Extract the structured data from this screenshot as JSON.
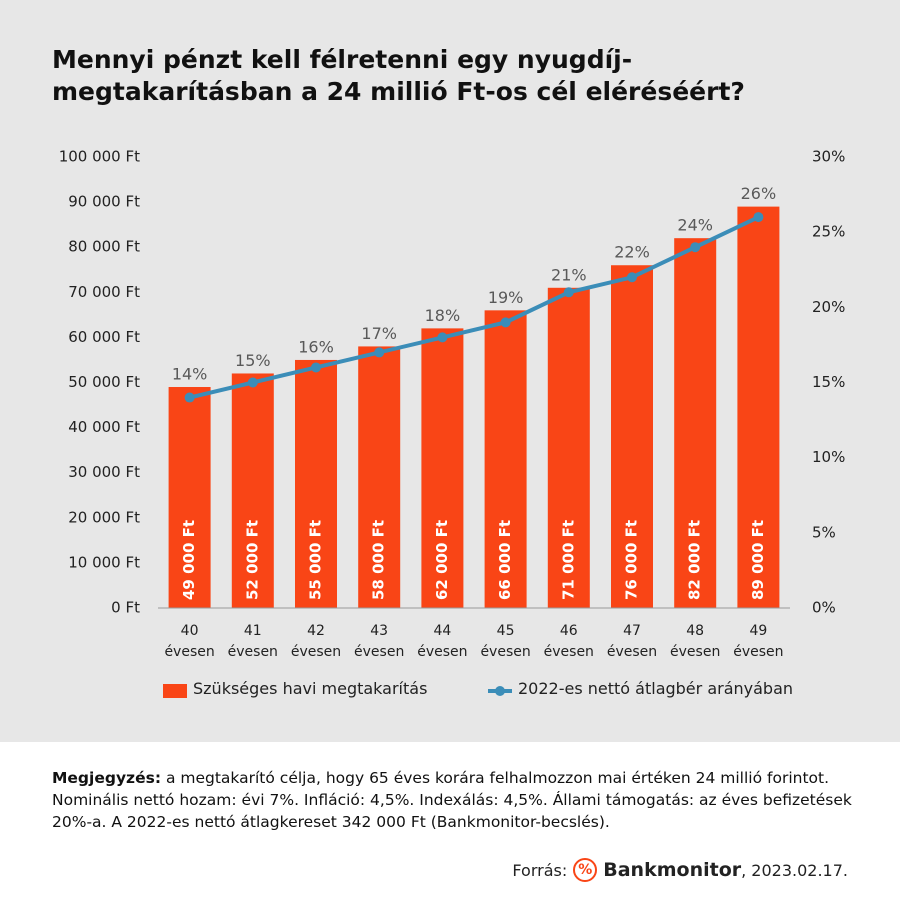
{
  "chart_data": {
    "type": "bar_line",
    "title": "Mennyi pénzt kell félretenni egy nyugdíj-megtakarításban a 24 millió Ft-os cél eléréséért?",
    "categories": [
      "40 évesen",
      "41 évesen",
      "42 évesen",
      "43 évesen",
      "44 évesen",
      "45 évesen",
      "46 évesen",
      "47 évesen",
      "48 évesen",
      "49 évesen"
    ],
    "series": [
      {
        "name": "Szükséges havi megtakarítás",
        "type": "bar",
        "color": "#f94516",
        "values": [
          49000,
          52000,
          55000,
          58000,
          62000,
          66000,
          71000,
          76000,
          82000,
          89000
        ],
        "value_labels": [
          "49 000 Ft",
          "52 000 Ft",
          "55 000 Ft",
          "58 000 Ft",
          "62 000 Ft",
          "66 000 Ft",
          "71 000 Ft",
          "76 000 Ft",
          "82 000 Ft",
          "89 000 Ft"
        ]
      },
      {
        "name": "2022-es nettó átlagbér arányában",
        "type": "line",
        "axis": "y2",
        "color": "#3b8db8",
        "values": [
          14,
          15,
          16,
          17,
          18,
          19,
          21,
          22,
          24,
          26
        ],
        "value_labels": [
          "14%",
          "15%",
          "16%",
          "17%",
          "18%",
          "19%",
          "21%",
          "22%",
          "24%",
          "26%"
        ]
      }
    ],
    "ylim": [
      0,
      100000
    ],
    "yticks": [
      {
        "value": 0,
        "label": "0 Ft"
      },
      {
        "value": 10000,
        "label": "10 000 Ft"
      },
      {
        "value": 20000,
        "label": "20 000 Ft"
      },
      {
        "value": 30000,
        "label": "30 000 Ft"
      },
      {
        "value": 40000,
        "label": "40 000 Ft"
      },
      {
        "value": 50000,
        "label": "50 000 Ft"
      },
      {
        "value": 60000,
        "label": "60 000 Ft"
      },
      {
        "value": 70000,
        "label": "70 000 Ft"
      },
      {
        "value": 80000,
        "label": "80 000 Ft"
      },
      {
        "value": 90000,
        "label": "90 000 Ft"
      },
      {
        "value": 100000,
        "label": "100 000 Ft"
      }
    ],
    "y2lim": [
      0,
      30
    ],
    "y2ticks": [
      {
        "value": 0,
        "label": "0%"
      },
      {
        "value": 5,
        "label": "5%"
      },
      {
        "value": 10,
        "label": "10%"
      },
      {
        "value": 15,
        "label": "15%"
      },
      {
        "value": 20,
        "label": "20%"
      },
      {
        "value": 25,
        "label": "25%"
      },
      {
        "value": 30,
        "label": "30%"
      }
    ],
    "legend": "bottom",
    "grid": false
  },
  "note_label": "Megjegyzés:",
  "note": "a megtakarító célja, hogy 65 éves korára felhalmozzon mai értéken 24 millió forintot. Nominális nettó hozam: évi 7%. Infláció: 4,5%. Indexálás: 4,5%. Állami támogatás: az éves befizetések 20%-a. A 2022-es nettó átlagkereset 342 000 Ft (Bankmonitor-becslés).",
  "source_label": "Forrás:",
  "source_logo": "%",
  "source_brand": "Bankmonitor",
  "source_date": ", 2023.02.17."
}
